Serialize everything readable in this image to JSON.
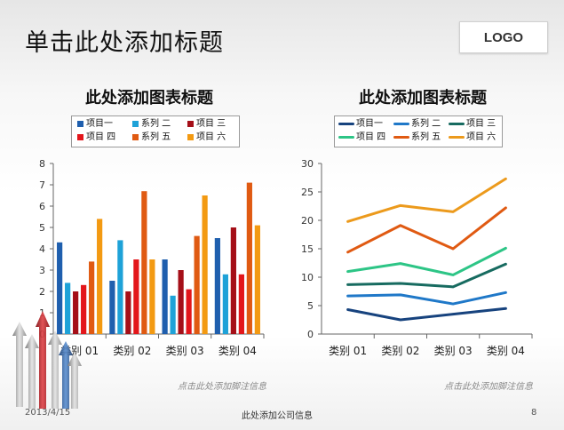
{
  "slide": {
    "title": "单击此处添加标题",
    "logo": "LOGO",
    "footer": {
      "date": "2013/4/15",
      "company": "此处添加公司信息",
      "page": "8"
    },
    "decoration": "3d-arrows-graphic"
  },
  "chart_data": [
    {
      "type": "bar",
      "title": "此处添加图表标题",
      "categories": [
        "类别 01",
        "类别 02",
        "类别 03",
        "类别 04"
      ],
      "series": [
        {
          "name": "项目一",
          "color": "#1f5fae",
          "values": [
            4.3,
            2.5,
            3.5,
            4.5
          ]
        },
        {
          "name": "系列 二",
          "color": "#1ea2d8",
          "values": [
            2.4,
            4.4,
            1.8,
            2.8
          ]
        },
        {
          "name": "项目 三",
          "color": "#a50f18",
          "values": [
            2.0,
            2.0,
            3.0,
            5.0
          ]
        },
        {
          "name": "项目 四",
          "color": "#e3161b",
          "values": [
            2.3,
            3.5,
            2.1,
            2.8
          ]
        },
        {
          "name": "系列 五",
          "color": "#e05a12",
          "values": [
            3.4,
            6.7,
            4.6,
            7.1
          ]
        },
        {
          "name": "项目 六",
          "color": "#f39a12",
          "values": [
            5.4,
            3.5,
            6.5,
            5.1
          ]
        }
      ],
      "ylim": [
        0,
        8
      ],
      "yticks": [
        0,
        1,
        2,
        3,
        4,
        5,
        6,
        7,
        8
      ],
      "grid": false,
      "legend_position": "top",
      "footnote": "点击此处添加脚注信息"
    },
    {
      "type": "line",
      "title": "此处添加图表标题",
      "categories": [
        "类别 01",
        "类别 02",
        "类别 03",
        "类别 04"
      ],
      "series": [
        {
          "name": "项目一",
          "color": "#17437e",
          "values": [
            4.3,
            2.5,
            3.5,
            4.5
          ]
        },
        {
          "name": "系列 二",
          "color": "#1f78c8",
          "values": [
            6.7,
            6.9,
            5.3,
            7.3
          ]
        },
        {
          "name": "项目 三",
          "color": "#176b60",
          "values": [
            8.7,
            8.9,
            8.3,
            12.3
          ]
        },
        {
          "name": "项目 四",
          "color": "#2dc586",
          "values": [
            11.0,
            12.4,
            10.4,
            15.1
          ]
        },
        {
          "name": "系列 五",
          "color": "#e05a12",
          "values": [
            14.4,
            19.1,
            15.0,
            22.2
          ]
        },
        {
          "name": "项目 六",
          "color": "#ec9a1c",
          "values": [
            19.8,
            22.6,
            21.5,
            27.3
          ]
        }
      ],
      "ylim": [
        0,
        30
      ],
      "yticks": [
        0,
        5,
        10,
        15,
        20,
        25,
        30
      ],
      "grid": false,
      "legend_position": "top",
      "footnote": "点击此处添加脚注信息"
    }
  ]
}
